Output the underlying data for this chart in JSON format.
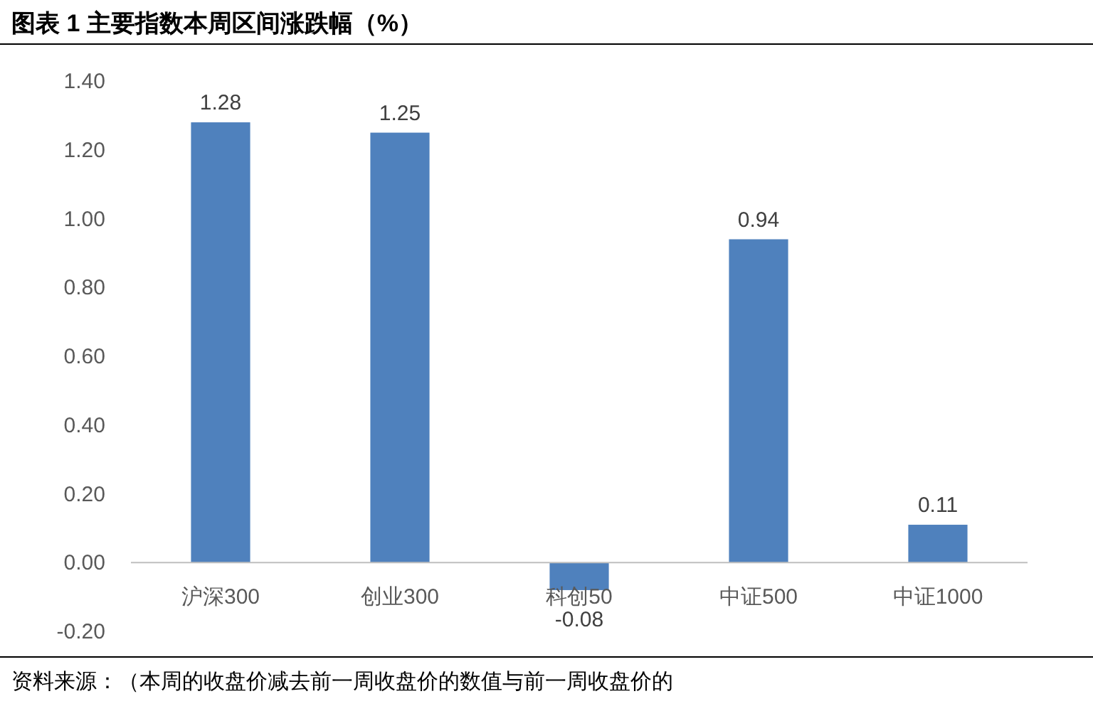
{
  "chart_data": {
    "type": "bar",
    "title": "图表 1 主要指数本周区间涨跌幅（%）",
    "categories": [
      "沪深300",
      "创业300",
      "科创50",
      "中证500",
      "中证1000"
    ],
    "values": [
      1.28,
      1.25,
      -0.08,
      0.94,
      0.11
    ],
    "color": "#4f81bd",
    "ylim": [
      -0.2,
      1.4
    ],
    "yticks": [
      {
        "value": -0.2,
        "label": "-0.20"
      },
      {
        "value": 0,
        "label": "0.00"
      },
      {
        "value": 0.2,
        "label": "0.20"
      },
      {
        "value": 0.4,
        "label": "0.40"
      },
      {
        "value": 0.6,
        "label": "0.60"
      },
      {
        "value": 0.8,
        "label": "0.80"
      },
      {
        "value": 1.0,
        "label": "1.00"
      },
      {
        "value": 1.2,
        "label": "1.20"
      },
      {
        "value": 1.4,
        "label": "1.40"
      }
    ],
    "data_labels": true,
    "grid": false,
    "annotations": [
      "资料来源：（本周的收盘价减去前一周收盘价的数值与前一周收盘价的"
    ]
  }
}
